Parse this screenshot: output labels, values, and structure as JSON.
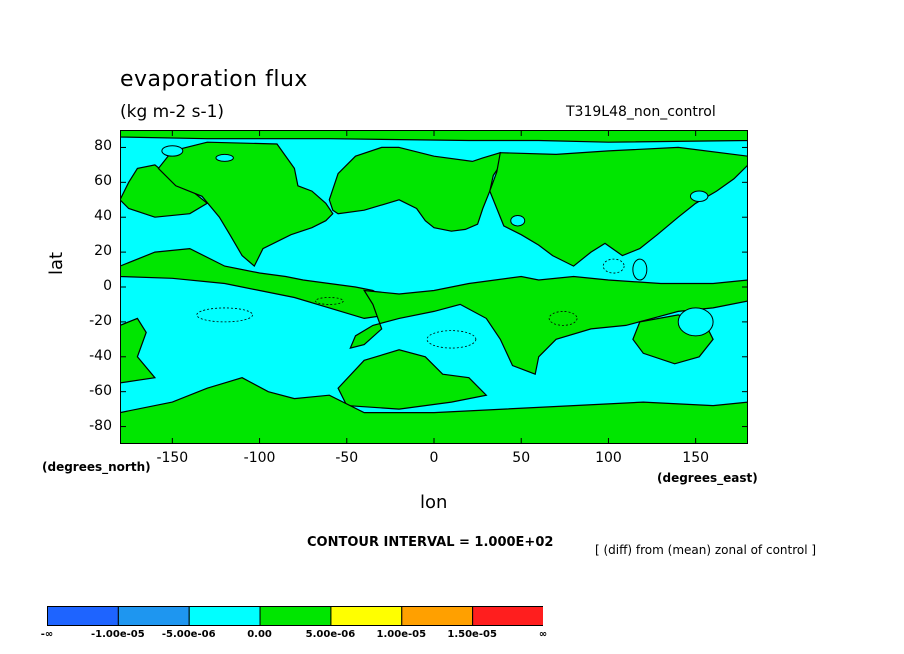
{
  "header": {
    "title": "evaporation flux",
    "units": "(kg m-2 s-1)",
    "run_name": "T319L48_non_control"
  },
  "axes": {
    "ylabel": "lat",
    "xlabel": "lon",
    "y_unit": "(degrees_north)",
    "x_unit": "(degrees_east)"
  },
  "footer": {
    "contour_interval": "CONTOUR INTERVAL = 1.000E+02",
    "note": "[ (diff) from (mean) zonal of control ]"
  },
  "chart_data": {
    "type": "heatmap",
    "title": "evaporation flux",
    "subtitle": "(kg m-2 s-1)",
    "xlabel": "lon",
    "ylabel": "lat",
    "xlim": [
      -180,
      180
    ],
    "ylim": [
      -90,
      90
    ],
    "x_ticks": [
      -150,
      -100,
      -50,
      0,
      50,
      100,
      150
    ],
    "x_tick_labels": [
      "-150",
      "-100",
      "-50",
      "0",
      "50",
      "100",
      "150"
    ],
    "y_ticks": [
      80,
      60,
      40,
      20,
      0,
      -20,
      -40,
      -60,
      -80
    ],
    "y_tick_labels": [
      "80",
      "60",
      "40",
      "20",
      "0",
      "-20",
      "-40",
      "-60",
      "-80"
    ],
    "dominant_colors": {
      "negative": "#00ffff",
      "positive": "#00e600"
    },
    "colorbar": {
      "colors": [
        "#1e64ff",
        "#1e96f0",
        "#00ffff",
        "#00e600",
        "#ffff00",
        "#ffa000",
        "#ff1e1e"
      ],
      "labels": [
        "-∞",
        "-1.00e-05",
        "-5.00e-06",
        "0.00",
        "5.00e-06",
        "1.00e-05",
        "1.50e-05",
        "∞"
      ]
    }
  }
}
